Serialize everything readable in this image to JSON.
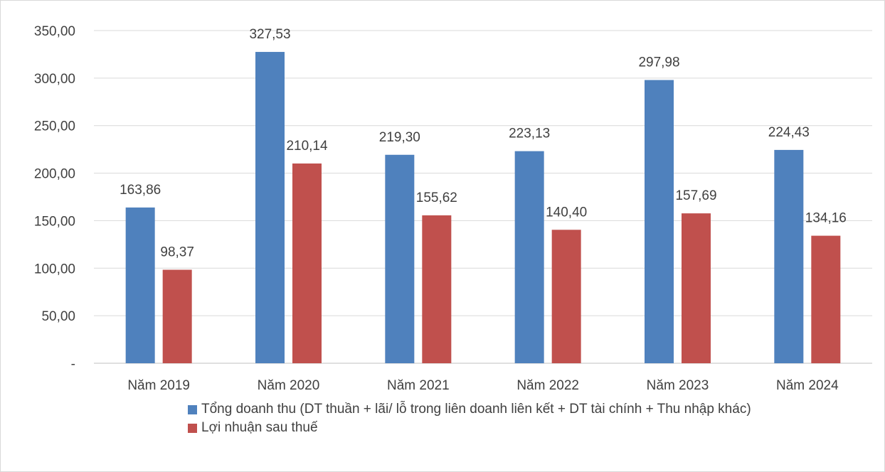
{
  "chart_data": {
    "type": "bar",
    "categories": [
      "Năm 2019",
      "Năm 2020",
      "Năm 2021",
      "Năm 2022",
      "Năm 2023",
      "Năm 2024"
    ],
    "series": [
      {
        "name": "Tổng doanh thu (DT thuần + lãi/ lỗ trong liên doanh liên kết + DT tài chính + Thu nhập khác)",
        "values": [
          163.86,
          327.53,
          219.3,
          223.13,
          297.98,
          224.43
        ],
        "labels": [
          "163,86",
          "327,53",
          "219,30",
          "223,13",
          "297,98",
          "224,43"
        ],
        "color": "#4f81bd"
      },
      {
        "name": "Lợi nhuận sau thuế",
        "values": [
          98.37,
          210.14,
          155.62,
          140.4,
          157.69,
          134.16
        ],
        "labels": [
          "98,37",
          "210,14",
          "155,62",
          "140,40",
          "157,69",
          "134,16"
        ],
        "color": "#c0504d"
      }
    ],
    "ylim": [
      0,
      350
    ],
    "y_ticks": [
      0,
      50,
      100,
      150,
      200,
      250,
      300,
      350
    ],
    "y_tick_labels": [
      "-",
      "50,00",
      "100,00",
      "150,00",
      "200,00",
      "250,00",
      "300,00",
      "350,00"
    ],
    "grid": true,
    "legend_position": "bottom"
  }
}
